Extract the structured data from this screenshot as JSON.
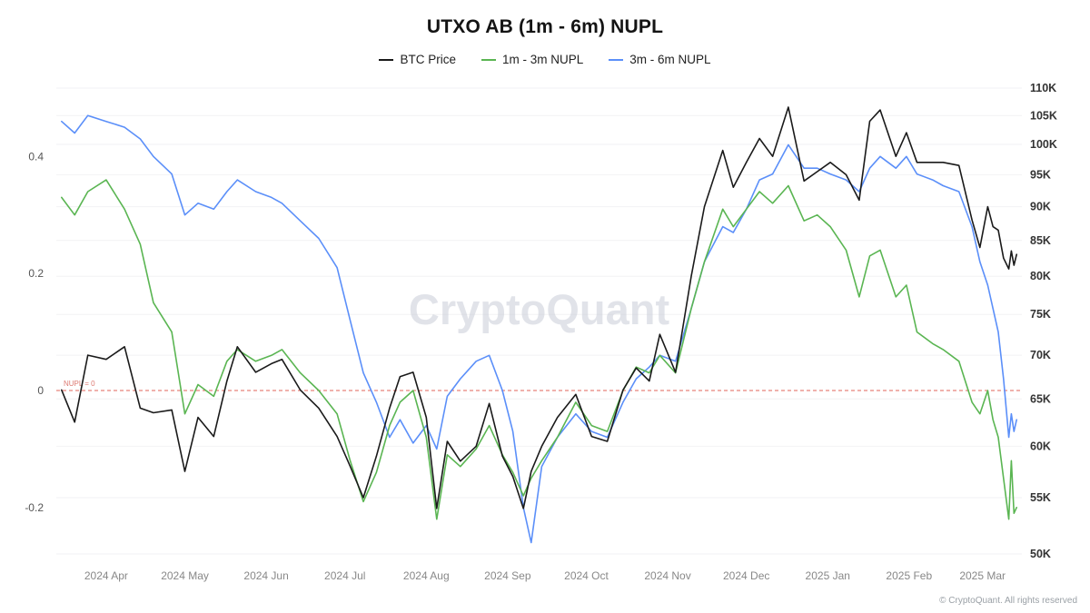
{
  "header": {
    "title": "UTXO AB (1m - 6m) NUPL"
  },
  "legend": {
    "items": [
      {
        "label": "BTC Price",
        "color": "#1a1a1a"
      },
      {
        "label": "1m - 3m NUPL",
        "color": "#5ab552"
      },
      {
        "label": "3m - 6m NUPL",
        "color": "#5b8ff9"
      }
    ]
  },
  "watermark": "CryptoQuant",
  "footer": {
    "copyright": "© CryptoQuant. All rights reserved"
  },
  "annotations": {
    "zero_line_label": "NUPL = 0"
  },
  "chart_data": {
    "type": "line",
    "title": "UTXO AB (1m - 6m) NUPL",
    "x_domain": [
      "2024-03-13",
      "2025-03-16"
    ],
    "x": [
      "2024-03-15",
      "2024-03-20",
      "2024-03-25",
      "2024-04-01",
      "2024-04-08",
      "2024-04-14",
      "2024-04-19",
      "2024-04-26",
      "2024-05-01",
      "2024-05-06",
      "2024-05-12",
      "2024-05-17",
      "2024-05-21",
      "2024-05-28",
      "2024-06-03",
      "2024-06-07",
      "2024-06-14",
      "2024-06-21",
      "2024-06-28",
      "2024-07-03",
      "2024-07-08",
      "2024-07-13",
      "2024-07-18",
      "2024-07-22",
      "2024-07-27",
      "2024-08-01",
      "2024-08-05",
      "2024-08-09",
      "2024-08-14",
      "2024-08-20",
      "2024-08-25",
      "2024-08-30",
      "2024-09-03",
      "2024-09-07",
      "2024-09-10",
      "2024-09-14",
      "2024-09-20",
      "2024-09-27",
      "2024-10-03",
      "2024-10-09",
      "2024-10-15",
      "2024-10-20",
      "2024-10-25",
      "2024-10-29",
      "2024-11-04",
      "2024-11-10",
      "2024-11-15",
      "2024-11-22",
      "2024-11-26",
      "2024-12-01",
      "2024-12-06",
      "2024-12-11",
      "2024-12-17",
      "2024-12-23",
      "2024-12-28",
      "2025-01-02",
      "2025-01-08",
      "2025-01-13",
      "2025-01-17",
      "2025-01-21",
      "2025-01-27",
      "2025-01-31",
      "2025-02-04",
      "2025-02-10",
      "2025-02-14",
      "2025-02-20",
      "2025-02-25",
      "2025-02-28",
      "2025-03-03",
      "2025-03-05",
      "2025-03-07",
      "2025-03-09",
      "2025-03-11",
      "2025-03-12",
      "2025-03-13",
      "2025-03-14"
    ],
    "series": [
      {
        "name": "BTC Price",
        "axis": "right",
        "color": "#1a1a1a",
        "units": "K USD",
        "values": [
          66,
          62.5,
          70,
          69.5,
          71,
          64,
          63.5,
          63.8,
          57.5,
          63,
          61,
          67,
          71,
          68,
          69,
          69.5,
          66,
          64,
          61,
          58,
          55,
          59,
          64,
          67.5,
          68,
          63,
          54,
          60.5,
          58.5,
          60,
          64.5,
          59,
          57,
          54,
          57.5,
          60,
          63,
          65.5,
          61,
          60.5,
          66,
          68.5,
          67,
          72.5,
          68,
          80,
          90,
          99,
          93,
          97,
          101,
          98,
          106.5,
          94,
          95.5,
          97,
          95,
          91,
          104,
          106,
          98,
          102,
          97,
          97,
          97,
          96.5,
          88,
          84,
          90,
          87,
          86.5,
          82.5,
          81,
          83.5,
          81.5,
          83
        ]
      },
      {
        "name": "1m - 3m NUPL",
        "axis": "left",
        "color": "#5ab552",
        "values": [
          0.33,
          0.3,
          0.34,
          0.36,
          0.31,
          0.25,
          0.15,
          0.1,
          -0.04,
          0.01,
          -0.01,
          0.05,
          0.07,
          0.05,
          0.06,
          0.07,
          0.03,
          0.0,
          -0.04,
          -0.12,
          -0.19,
          -0.14,
          -0.06,
          -0.02,
          0.0,
          -0.08,
          -0.22,
          -0.11,
          -0.13,
          -0.1,
          -0.06,
          -0.11,
          -0.14,
          -0.18,
          -0.15,
          -0.12,
          -0.08,
          -0.02,
          -0.06,
          -0.07,
          0.0,
          0.04,
          0.03,
          0.06,
          0.03,
          0.14,
          0.22,
          0.31,
          0.28,
          0.31,
          0.34,
          0.32,
          0.35,
          0.29,
          0.3,
          0.28,
          0.24,
          0.16,
          0.23,
          0.24,
          0.16,
          0.18,
          0.1,
          0.08,
          0.07,
          0.05,
          -0.02,
          -0.04,
          0.0,
          -0.05,
          -0.08,
          -0.15,
          -0.22,
          -0.12,
          -0.21,
          -0.2
        ]
      },
      {
        "name": "3m - 6m NUPL",
        "axis": "left",
        "color": "#5b8ff9",
        "values": [
          0.46,
          0.44,
          0.47,
          0.46,
          0.45,
          0.43,
          0.4,
          0.37,
          0.3,
          0.32,
          0.31,
          0.34,
          0.36,
          0.34,
          0.33,
          0.32,
          0.29,
          0.26,
          0.21,
          0.12,
          0.03,
          -0.02,
          -0.08,
          -0.05,
          -0.09,
          -0.06,
          -0.1,
          -0.01,
          0.02,
          0.05,
          0.06,
          0.0,
          -0.07,
          -0.2,
          -0.26,
          -0.13,
          -0.08,
          -0.04,
          -0.07,
          -0.08,
          -0.02,
          0.02,
          0.04,
          0.06,
          0.05,
          0.14,
          0.22,
          0.28,
          0.27,
          0.31,
          0.36,
          0.37,
          0.42,
          0.38,
          0.38,
          0.37,
          0.36,
          0.34,
          0.38,
          0.4,
          0.38,
          0.4,
          0.37,
          0.36,
          0.35,
          0.34,
          0.28,
          0.22,
          0.18,
          0.14,
          0.1,
          0.02,
          -0.08,
          -0.04,
          -0.07,
          -0.05
        ]
      }
    ],
    "left_axis": {
      "scale": "linear",
      "range": [
        -0.295,
        0.52
      ],
      "ticks": [
        {
          "value": 0.4,
          "label": "0.4"
        },
        {
          "value": 0.2,
          "label": "0.2"
        },
        {
          "value": 0,
          "label": "0"
        },
        {
          "value": -0.2,
          "label": "-0.2"
        }
      ]
    },
    "right_axis": {
      "scale": "log",
      "range": [
        50,
        110
      ],
      "ticks": [
        {
          "value": 110,
          "label": "110K"
        },
        {
          "value": 105,
          "label": "105K"
        },
        {
          "value": 100,
          "label": "100K"
        },
        {
          "value": 95,
          "label": "95K"
        },
        {
          "value": 90,
          "label": "90K"
        },
        {
          "value": 85,
          "label": "85K"
        },
        {
          "value": 80,
          "label": "80K"
        },
        {
          "value": 75,
          "label": "75K"
        },
        {
          "value": 70,
          "label": "70K"
        },
        {
          "value": 65,
          "label": "65K"
        },
        {
          "value": 60,
          "label": "60K"
        },
        {
          "value": 55,
          "label": "55K"
        },
        {
          "value": 50,
          "label": "50K"
        }
      ]
    },
    "x_ticks": [
      {
        "date": "2024-04-01",
        "label": "2024 Apr"
      },
      {
        "date": "2024-05-01",
        "label": "2024 May"
      },
      {
        "date": "2024-06-01",
        "label": "2024 Jun"
      },
      {
        "date": "2024-07-01",
        "label": "2024 Jul"
      },
      {
        "date": "2024-08-01",
        "label": "2024 Aug"
      },
      {
        "date": "2024-09-01",
        "label": "2024 Sep"
      },
      {
        "date": "2024-10-01",
        "label": "2024 Oct"
      },
      {
        "date": "2024-11-01",
        "label": "2024 Nov"
      },
      {
        "date": "2024-12-01",
        "label": "2024 Dec"
      },
      {
        "date": "2025-01-01",
        "label": "2025 Jan"
      },
      {
        "date": "2025-02-01",
        "label": "2025 Feb"
      },
      {
        "date": "2025-03-01",
        "label": "2025 Mar"
      }
    ],
    "zero_line": {
      "value": 0,
      "color": "#e0635a",
      "style": "dashed",
      "label": "NUPL = 0"
    },
    "grid": {
      "show": true,
      "color": "#f2f2f4"
    },
    "legend_position": "top-center"
  }
}
